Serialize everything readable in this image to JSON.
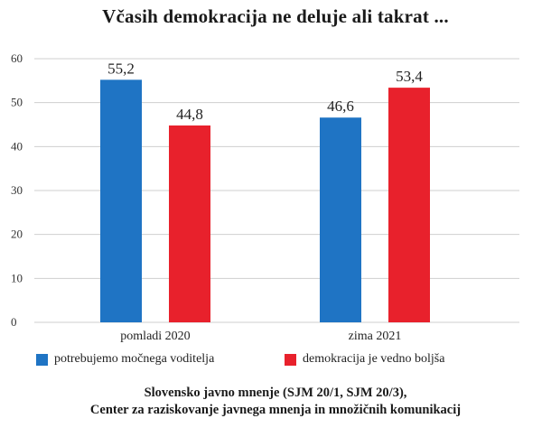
{
  "chart_data": {
    "type": "bar",
    "title": "Včasih demokracija ne deluje ali takrat ...",
    "categories": [
      "pomladi 2020",
      "zima 2021"
    ],
    "series": [
      {
        "name": "potrebujemo močnega voditelja",
        "values": [
          55.2,
          46.6
        ],
        "labels": [
          "55,2",
          "46,6"
        ],
        "color": "#1f74c4"
      },
      {
        "name": "demokracija je vedno boljša",
        "values": [
          44.8,
          53.4
        ],
        "labels": [
          "44,8",
          "53,4"
        ],
        "color": "#e8212c"
      }
    ],
    "ylim": [
      0,
      60
    ],
    "yticks": [
      0,
      10,
      20,
      30,
      40,
      50,
      60
    ],
    "ytick_labels": [
      "0",
      "10",
      "20",
      "30",
      "40",
      "50",
      "60"
    ],
    "grid": true,
    "legend_position": "bottom",
    "xlabel": "",
    "ylabel": ""
  },
  "source": {
    "line1": "Slovensko javno mnenje (SJM 20/1, SJM 20/3),",
    "line2": "Center za raziskovanje javnega mnenja in množičnih komunikacij"
  }
}
